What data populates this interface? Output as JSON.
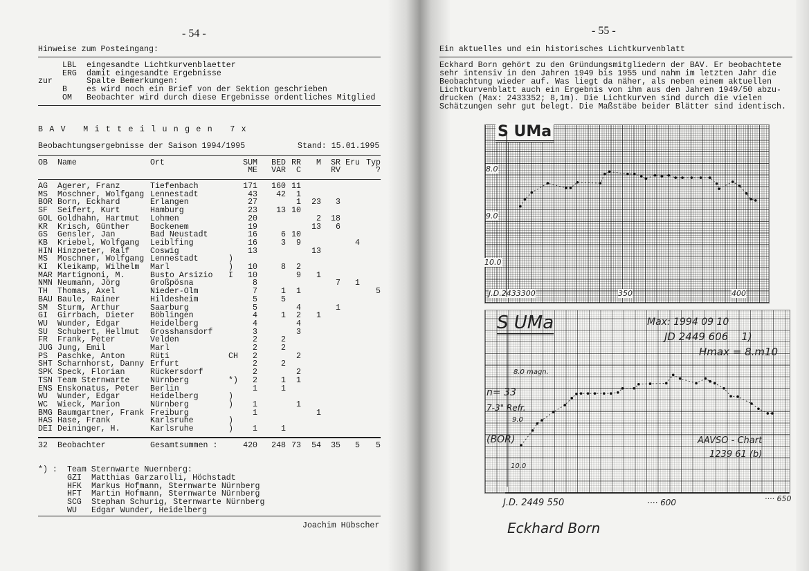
{
  "left_page": {
    "page_number": "- 54 -",
    "notes_title": "Hinweise zum Posteingang:",
    "notes": [
      {
        "prefix": "",
        "code": "LBL",
        "text": "eingesandte Lichtkurvenblaetter"
      },
      {
        "prefix": "",
        "code": "ERG",
        "text": "damit eingesandte Ergebnisse"
      },
      {
        "prefix": "zur",
        "code": "",
        "text": "Spalte Bemerkungen:"
      },
      {
        "prefix": "",
        "code": "B",
        "text": "es wird noch ein Brief von der Sektion geschrieben"
      },
      {
        "prefix": "",
        "code": "OM",
        "text": "Beobachter wird durch diese Ergebnisse ordentliches Mitglied"
      }
    ],
    "section_title": "B A V   M i t t e i l u n g e n   7 x",
    "subtitle": "Beobachtungsergebnisse der Saison 1994/1995",
    "stand": "Stand: 15.01.1995",
    "table": {
      "headers_row1": [
        "OB",
        "Name",
        "Ort",
        "",
        "SUM",
        "BED",
        "RR",
        "M",
        "SR",
        "Eru",
        "Typ"
      ],
      "headers_row2": [
        "",
        "",
        "",
        "",
        "ME",
        "VAR",
        "C",
        "",
        "RV",
        "",
        "?"
      ],
      "rows": [
        [
          "AG",
          "Agerer, Franz",
          "Tiefenbach",
          "",
          "171",
          "160",
          "11",
          "",
          "",
          "",
          ""
        ],
        [
          "MS",
          "Moschner, Wolfgang",
          "Lennestadt",
          "",
          "43",
          "42",
          "1",
          "",
          "",
          "",
          ""
        ],
        [
          "BOR",
          "Born, Eckhard",
          "Erlangen",
          "",
          "27",
          "",
          "1",
          "23",
          "3",
          "",
          ""
        ],
        [
          "SF",
          "Seifert, Kurt",
          "Hamburg",
          "",
          "23",
          "13",
          "10",
          "",
          "",
          "",
          ""
        ],
        [
          "GOL",
          "Goldhahn, Hartmut",
          "Lohmen",
          "",
          "20",
          "",
          "",
          "2",
          "18",
          "",
          ""
        ],
        [
          "KR",
          "Krisch, Günther",
          "Bockenem",
          "",
          "19",
          "",
          "",
          "13",
          "6",
          "",
          ""
        ],
        [
          "GS",
          "Gensler, Jan",
          "Bad Neustadt",
          "",
          "16",
          "6",
          "10",
          "",
          "",
          "",
          ""
        ],
        [
          "KB",
          "Kriebel, Wolfgang",
          "Leiblfing",
          "",
          "16",
          "3",
          "9",
          "",
          "",
          "4",
          ""
        ],
        [
          "HIN",
          "Hinzpeter, Ralf",
          "Coswig",
          "",
          "13",
          "",
          "",
          "13",
          "",
          "",
          ""
        ],
        [
          "MS",
          "Moschner, Wolfgang",
          "Lennestadt",
          ")",
          "",
          "",
          "",
          "",
          "",
          "",
          ""
        ],
        [
          "KI",
          "Kleikamp, Wilhelm",
          "Marl",
          ")",
          "10",
          "8",
          "2",
          "",
          "",
          "",
          ""
        ],
        [
          "MAR",
          "Martignoni, M.",
          "Busto Arsizio",
          "I",
          "10",
          "",
          "9",
          "1",
          "",
          "",
          ""
        ],
        [
          "NMN",
          "Neumann, Jörg",
          "Großpösna",
          "",
          "8",
          "",
          "",
          "",
          "7",
          "1",
          ""
        ],
        [
          "TH",
          "Thomas, Axel",
          "Nieder-Olm",
          "",
          "7",
          "1",
          "1",
          "",
          "",
          "",
          "5"
        ],
        [
          "BAU",
          "Baule, Rainer",
          "Hildesheim",
          "",
          "5",
          "5",
          "",
          "",
          "",
          "",
          ""
        ],
        [
          "SM",
          "Sturm, Arthur",
          "Saarburg",
          "",
          "5",
          "",
          "4",
          "",
          "1",
          "",
          ""
        ],
        [
          "GI",
          "Girrbach, Dieter",
          "Böblingen",
          "",
          "4",
          "1",
          "2",
          "1",
          "",
          "",
          ""
        ],
        [
          "WU",
          "Wunder, Edgar",
          "Heidelberg",
          "",
          "4",
          "",
          "4",
          "",
          "",
          "",
          ""
        ],
        [
          "SU",
          "Schubert, Hellmut",
          "Grosshansdorf",
          "",
          "3",
          "",
          "3",
          "",
          "",
          "",
          ""
        ],
        [
          "FR",
          "Frank, Peter",
          "Velden",
          "",
          "2",
          "2",
          "",
          "",
          "",
          "",
          ""
        ],
        [
          "JUG",
          "Jung, Emil",
          "Marl",
          "",
          "2",
          "2",
          "",
          "",
          "",
          "",
          ""
        ],
        [
          "PS",
          "Paschke, Anton",
          "Rüti",
          "CH",
          "2",
          "",
          "2",
          "",
          "",
          "",
          ""
        ],
        [
          "SHT",
          "Scharnhorst, Danny",
          "Erfurt",
          "",
          "2",
          "2",
          "",
          "",
          "",
          "",
          ""
        ],
        [
          "SPK",
          "Speck, Florian",
          "Rückersdorf",
          "",
          "2",
          "",
          "2",
          "",
          "",
          "",
          ""
        ],
        [
          "TSN",
          "Team Sternwarte",
          "Nürnberg",
          "*)",
          "2",
          "1",
          "1",
          "",
          "",
          "",
          ""
        ],
        [
          "ENS",
          "Enskonatus, Peter",
          "Berlin",
          "",
          "1",
          "1",
          "",
          "",
          "",
          "",
          ""
        ],
        [
          "WU",
          "Wunder, Edgar",
          "Heidelberg",
          ")",
          "",
          "",
          "",
          "",
          "",
          "",
          ""
        ],
        [
          "WC",
          "Wieck, Marion",
          "Nürnberg",
          ")",
          "1",
          "",
          "1",
          "",
          "",
          "",
          ""
        ],
        [
          "BMG",
          "Baumgartner, Frank",
          "Freiburg",
          "",
          "1",
          "",
          "",
          "1",
          "",
          "",
          ""
        ],
        [
          "HAS",
          "Hase, Frank",
          "Karlsruhe",
          ")",
          "",
          "",
          "",
          "",
          "",
          "",
          ""
        ],
        [
          "DEI",
          "Deininger, H.",
          "Karlsruhe",
          ")",
          "1",
          "1",
          "",
          "",
          "",
          "",
          ""
        ]
      ],
      "total_row": [
        "32",
        "Beobachter",
        "Gesamtsummen :",
        "",
        "420",
        "248",
        "73",
        "54",
        "35",
        "5",
        "5"
      ]
    },
    "footnote": {
      "marker": "*) :",
      "title": "Team Sternwarte Nuernberg:",
      "members": [
        {
          "code": "GZI",
          "text": "Matthias Garzarolli, Höchstadt"
        },
        {
          "code": "HFK",
          "text": "Markus Hofmann, Sternwarte Nürnberg"
        },
        {
          "code": "HFT",
          "text": "Martin Hofmann, Sternwarte Nürnberg"
        },
        {
          "code": "SCG",
          "text": "Stephan Schurig, Sternwarte Nürnberg"
        },
        {
          "code": "WU",
          "text": "Edgar Wunder, Heidelberg"
        }
      ]
    },
    "author": "Joachim Hübscher"
  },
  "right_page": {
    "page_number": "- 55 -",
    "title": "Ein aktuelles und ein historisches Lichtkurvenblatt",
    "paragraph_lines": [
      "Eckhard Born gehört zu den Gründungsmitgliedern der BAV. Er beobachtete",
      "sehr intensiv in den Jahren 1949 bis 1955 und nahm im letzten Jahr die",
      "Beobachtung wieder auf. Was liegt da näher, als neben einem aktuellen",
      "Lichtkurvenblatt auch ein Ergebnis von ihm aus den Jahren 1949/50 abzu-",
      "drucken (Max: 2433352; 8,1m). Die Lichtkurven sind durch die vielen",
      "Schätzungen sehr gut belegt. Die Maßstäbe beider Blätter sind identisch."
    ],
    "historic_chart": {
      "title": "S UMa",
      "y_labels": [
        "8.0",
        "9.0",
        "10.0"
      ],
      "x_labels": [
        "J.D.2433300",
        "350",
        "400"
      ]
    },
    "current_chart": {
      "title": "S UMa",
      "max_line": "Max: 1994 09 10",
      "jd_line": "JD 2449 606    1)",
      "hmax_line": "Hmax = 8.m10",
      "y_labels": [
        "8.0 magn.",
        "9.0",
        "10.0"
      ],
      "x_labels": [
        "J.D. 2449 550",
        "···· 600",
        "···· 650"
      ],
      "side_notes": [
        "n= 33",
        "7-3\" Refr.",
        "(BOR)"
      ],
      "chart_ref": [
        "AAVSO - Chart",
        "1239 61 (b)"
      ],
      "signature": "Eckhard Born"
    }
  },
  "chart_data": [
    {
      "type": "scatter",
      "title": "S UMa",
      "xlabel": "J.D. 2433300 +",
      "ylabel": "",
      "xlim": [
        300,
        415
      ],
      "ylim": [
        10.5,
        7.5
      ],
      "x": [
        306,
        308,
        311,
        318,
        326,
        328,
        331,
        341,
        343,
        345,
        353,
        356,
        359,
        361,
        365,
        368,
        371,
        374,
        377,
        381,
        385,
        389,
        392,
        393,
        399,
        402,
        405,
        407,
        409
      ],
      "y": [
        8.8,
        8.65,
        8.5,
        8.3,
        8.4,
        8.4,
        8.28,
        8.3,
        8.1,
        8.05,
        8.1,
        8.1,
        8.15,
        8.2,
        8.13,
        8.15,
        8.13,
        8.18,
        8.18,
        8.18,
        8.18,
        8.18,
        8.31,
        8.42,
        8.27,
        8.36,
        8.52,
        8.64,
        8.67
      ]
    },
    {
      "type": "scatter",
      "title": "S UMa",
      "xlabel": "J.D. 2449 500 +",
      "ylabel": "",
      "xlim": [
        530,
        660
      ],
      "ylim": [
        10.5,
        7.5
      ],
      "x": [
        536,
        541,
        543,
        545,
        550,
        555,
        558,
        560,
        562,
        565,
        568,
        572,
        575,
        578,
        580,
        585,
        587,
        592,
        599,
        602,
        605,
        612,
        616,
        618,
        620,
        624,
        627,
        630,
        636,
        639,
        643,
        645
      ],
      "y": [
        9.54,
        9.22,
        9.07,
        9.0,
        8.82,
        8.67,
        8.52,
        8.43,
        8.42,
        8.42,
        8.42,
        8.42,
        8.42,
        8.4,
        8.31,
        8.31,
        8.22,
        8.21,
        8.2,
        8.02,
        8.1,
        8.2,
        8.1,
        8.16,
        8.2,
        8.31,
        8.48,
        8.49,
        8.64,
        8.75,
        8.85,
        8.85
      ]
    }
  ]
}
